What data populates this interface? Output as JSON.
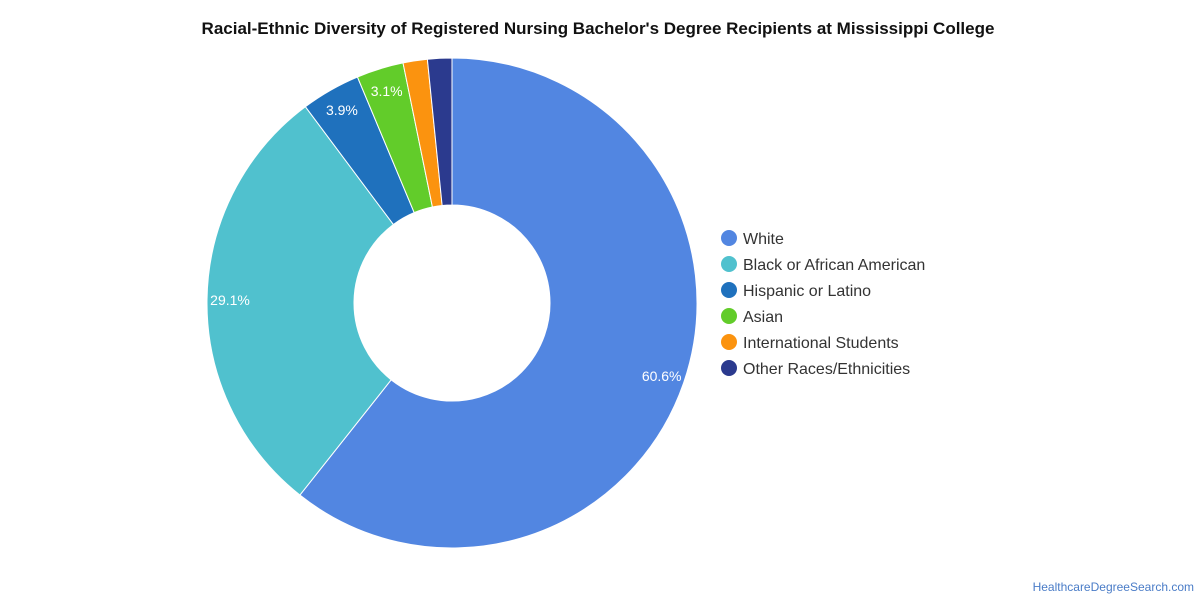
{
  "source_label": "HealthcareDegreeSearch.com",
  "chart_data": {
    "type": "pie",
    "style": "donut",
    "title": "Racial-Ethnic Diversity of Registered Nursing Bachelor's Degree Recipients at Mississippi College",
    "legend_position": "right",
    "series": [
      {
        "name": "White",
        "value": 60.6,
        "color": "#5286e1",
        "label": "60.6%"
      },
      {
        "name": "Black or African American",
        "value": 29.1,
        "color": "#50c1ce",
        "label": "29.1%"
      },
      {
        "name": "Hispanic or Latino",
        "value": 3.9,
        "color": "#1f71bd",
        "label": "3.9%"
      },
      {
        "name": "Asian",
        "value": 3.1,
        "color": "#62cc2a",
        "label": "3.1%"
      },
      {
        "name": "International Students",
        "value": 1.6,
        "color": "#fb930f",
        "label": ""
      },
      {
        "name": "Other Races/Ethnicities",
        "value": 1.6,
        "color": "#2b3a8e",
        "label": ""
      }
    ]
  }
}
